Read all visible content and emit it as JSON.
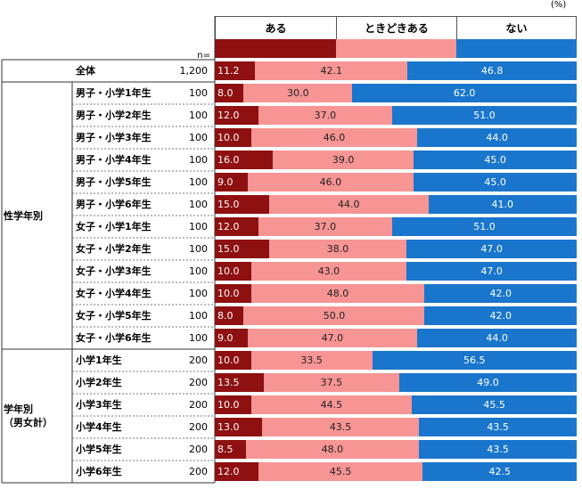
{
  "unit": "(%)",
  "n_header": "n=",
  "colors": {
    "aru": "#8e1010",
    "tokidoki": "#f79494",
    "nai": "#1a76cc"
  },
  "chart_data": {
    "type": "stacked-bar-horizontal",
    "legend": [
      "ある",
      "ときどきある",
      "ない"
    ],
    "xlim": [
      0,
      100
    ],
    "rows": [
      {
        "label": "全体",
        "n": "1,200",
        "values": [
          11.2,
          42.1,
          46.8
        ]
      },
      {
        "label": "男子・小学1年生",
        "n": "100",
        "values": [
          8.0,
          30.0,
          62.0
        ]
      },
      {
        "label": "男子・小学2年生",
        "n": "100",
        "values": [
          12.0,
          37.0,
          51.0
        ]
      },
      {
        "label": "男子・小学3年生",
        "n": "100",
        "values": [
          10.0,
          46.0,
          44.0
        ]
      },
      {
        "label": "男子・小学4年生",
        "n": "100",
        "values": [
          16.0,
          39.0,
          45.0
        ]
      },
      {
        "label": "男子・小学5年生",
        "n": "100",
        "values": [
          9.0,
          46.0,
          45.0
        ]
      },
      {
        "label": "男子・小学6年生",
        "n": "100",
        "values": [
          15.0,
          44.0,
          41.0
        ]
      },
      {
        "label": "女子・小学1年生",
        "n": "100",
        "values": [
          12.0,
          37.0,
          51.0
        ]
      },
      {
        "label": "女子・小学2年生",
        "n": "100",
        "values": [
          15.0,
          38.0,
          47.0
        ]
      },
      {
        "label": "女子・小学3年生",
        "n": "100",
        "values": [
          10.0,
          43.0,
          47.0
        ]
      },
      {
        "label": "女子・小学4年生",
        "n": "100",
        "values": [
          10.0,
          48.0,
          42.0
        ]
      },
      {
        "label": "女子・小学5年生",
        "n": "100",
        "values": [
          8.0,
          50.0,
          42.0
        ]
      },
      {
        "label": "女子・小学6年生",
        "n": "100",
        "values": [
          9.0,
          47.0,
          44.0
        ]
      },
      {
        "label": "小学1年生",
        "n": "200",
        "values": [
          10.0,
          33.5,
          56.5
        ]
      },
      {
        "label": "小学2年生",
        "n": "200",
        "values": [
          13.5,
          37.5,
          49.0
        ]
      },
      {
        "label": "小学3年生",
        "n": "200",
        "values": [
          10.0,
          44.5,
          45.5
        ]
      },
      {
        "label": "小学4年生",
        "n": "200",
        "values": [
          13.0,
          43.5,
          43.5
        ]
      },
      {
        "label": "小学5年生",
        "n": "200",
        "values": [
          8.5,
          48.0,
          43.5
        ]
      },
      {
        "label": "小学6年生",
        "n": "200",
        "values": [
          12.0,
          45.5,
          42.5
        ]
      }
    ],
    "groups": [
      {
        "label": "性学年別",
        "from": 1,
        "to": 12
      },
      {
        "label": "学年別\n（男女計）",
        "from": 13,
        "to": 18
      }
    ]
  }
}
